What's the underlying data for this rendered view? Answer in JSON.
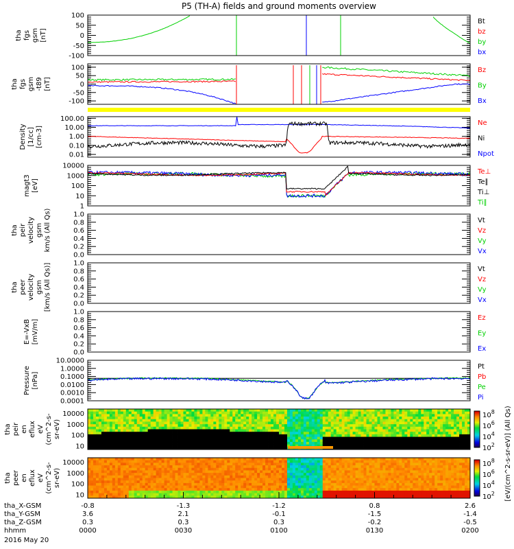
{
  "chart_data": {
    "type": "line",
    "title": "P5 (TH-A) fields and ground moments overview",
    "date": "2016 May 20",
    "x_axis": {
      "rows": [
        {
          "label": "tha_X-GSM",
          "values": [
            "-0.8",
            "-1.3",
            "-1.2",
            "0.8",
            "2.6"
          ]
        },
        {
          "label": "tha_Y-GSM",
          "values": [
            "3.6",
            "2.1",
            "-0.1",
            "-1.5",
            "-1.4"
          ]
        },
        {
          "label": "tha_Z-GSM",
          "values": [
            "0.3",
            "0.3",
            "0.3",
            "-0.2",
            "-0.5"
          ]
        },
        {
          "label": "hhmm",
          "values": [
            "0000",
            "0030",
            "0100",
            "0130",
            "0200"
          ]
        }
      ]
    },
    "panels": [
      {
        "id": "fgs",
        "ylabel": [
          "tha",
          "fgs",
          "gsm",
          "[nT]"
        ],
        "scale": "linear",
        "ylim": [
          -100,
          100
        ],
        "ticks": [
          "100",
          "50",
          "0",
          "-50",
          "-100"
        ],
        "tick_values": [
          100,
          50,
          0,
          -50,
          -100
        ],
        "legend": [
          {
            "name": "Bt",
            "color": "#000000"
          },
          {
            "name": "bz",
            "color": "#ff0000"
          },
          {
            "name": "by",
            "color": "#00d000"
          },
          {
            "name": "bx",
            "color": "#0000ff"
          }
        ]
      },
      {
        "id": "fgs_t89",
        "ylabel": [
          "tha",
          "fgs",
          "gsm",
          "-t89",
          "[nT]"
        ],
        "scale": "linear",
        "ylim": [
          -120,
          120
        ],
        "ticks": [
          "100",
          "50",
          "0",
          "-50",
          "-100"
        ],
        "tick_values": [
          100,
          50,
          0,
          -50,
          -100
        ],
        "legend": [
          {
            "name": "Bz",
            "color": "#ff0000"
          },
          {
            "name": "By",
            "color": "#00d000"
          },
          {
            "name": "Bx",
            "color": "#0000ff"
          }
        ]
      },
      {
        "id": "density",
        "ylabel": [
          "Density",
          "[1/cc]",
          "[cm-3]"
        ],
        "scale": "log",
        "ylim": [
          0.005,
          150
        ],
        "ticks": [
          "100.00",
          "10.00",
          "1.00",
          "0.10",
          "0.01"
        ],
        "tick_values": [
          100,
          10,
          1,
          0.1,
          0.01
        ],
        "legend": [
          {
            "name": "Ne",
            "color": "#ff0000"
          },
          {
            "name": "Ni",
            "color": "#000000"
          },
          {
            "name": "Npot",
            "color": "#0000ff"
          }
        ]
      },
      {
        "id": "temp",
        "ylabel": [
          "magt3",
          "[eV]"
        ],
        "scale": "log",
        "ylim": [
          1,
          10000
        ],
        "ticks": [
          "10000",
          "1000",
          "100",
          "10",
          "1"
        ],
        "tick_values": [
          10000,
          1000,
          100,
          10,
          1
        ],
        "legend": [
          {
            "name": "Te⊥",
            "color": "#ff0000"
          },
          {
            "name": "Te∥",
            "color": "#000000"
          },
          {
            "name": "Ti⊥",
            "color": "#000000"
          },
          {
            "name": "Ti∥",
            "color": "#00d000"
          }
        ]
      },
      {
        "id": "peir_vel",
        "ylabel": [
          "tha",
          "peir",
          "velocity",
          "gsm",
          "km/s (All Qs)"
        ],
        "scale": "linear",
        "ylim": [
          0,
          1
        ],
        "ticks": [
          "1.0",
          "0.8",
          "0.6",
          "0.4",
          "0.2",
          "0.0"
        ],
        "tick_values": [
          1,
          0.8,
          0.6,
          0.4,
          0.2,
          0
        ],
        "legend": [
          {
            "name": "Vt",
            "color": "#000000"
          },
          {
            "name": "Vz",
            "color": "#ff0000"
          },
          {
            "name": "Vy",
            "color": "#00d000"
          },
          {
            "name": "Vx",
            "color": "#0000ff"
          }
        ]
      },
      {
        "id": "peer_vel",
        "ylabel": [
          "tha",
          "peer",
          "velocity",
          "gsm",
          "[km/s (All Qs)]"
        ],
        "scale": "linear",
        "ylim": [
          0,
          1
        ],
        "ticks": [
          "1.0",
          "0.8",
          "0.6",
          "0.4",
          "0.2",
          "0.0"
        ],
        "tick_values": [
          1,
          0.8,
          0.6,
          0.4,
          0.2,
          0
        ],
        "legend": [
          {
            "name": "Vt",
            "color": "#000000"
          },
          {
            "name": "Vz",
            "color": "#ff0000"
          },
          {
            "name": "Vy",
            "color": "#00d000"
          },
          {
            "name": "Vx",
            "color": "#0000ff"
          }
        ]
      },
      {
        "id": "efield",
        "ylabel": [
          "E=-VxB",
          "[mV/m]"
        ],
        "scale": "linear",
        "ylim": [
          0,
          1
        ],
        "ticks": [
          "1.0",
          "0.8",
          "0.6",
          "0.4",
          "0.2",
          "0.0"
        ],
        "tick_values": [
          1,
          0.8,
          0.6,
          0.4,
          0.2,
          0
        ],
        "legend": [
          {
            "name": "Ez",
            "color": "#ff0000"
          },
          {
            "name": "Ey",
            "color": "#00d000"
          },
          {
            "name": "Ex",
            "color": "#0000ff"
          }
        ]
      },
      {
        "id": "pressure",
        "ylabel": [
          "Pressure",
          "[nPa]"
        ],
        "scale": "log",
        "ylim": [
          0.0001,
          10
        ],
        "ticks": [
          "10.0000",
          "1.0000",
          "0.1000",
          "0.0100",
          "0.0010",
          "0.0001"
        ],
        "tick_values": [
          10,
          1,
          0.1,
          0.01,
          0.001,
          0.0001
        ],
        "legend": [
          {
            "name": "Pt",
            "color": "#000000"
          },
          {
            "name": "Pb",
            "color": "#ff0000"
          },
          {
            "name": "Pe",
            "color": "#00d000"
          },
          {
            "name": "Pi",
            "color": "#0000ff"
          }
        ]
      },
      {
        "id": "peir_spec",
        "type": "heatmap",
        "ylabel": [
          "tha",
          "peir",
          "en",
          "eflux",
          "eV",
          "(cm^2-s-",
          "sr-eV)"
        ],
        "scale": "log",
        "ylim": [
          5,
          25000
        ],
        "ticks": [
          "10000",
          "1000",
          "100",
          "10"
        ],
        "tick_values": [
          10000,
          1000,
          100,
          10
        ],
        "colorbar": {
          "labels": [
            "10^8",
            "10^6",
            "10^4",
            "10^2"
          ]
        }
      },
      {
        "id": "peer_spec",
        "type": "heatmap",
        "ylabel": [
          "tha",
          "peer",
          "en",
          "eflux",
          "eV",
          "(cm^2-s-",
          "sr-eV)"
        ],
        "scale": "log",
        "ylim": [
          5,
          25000
        ],
        "ticks": [
          "10000",
          "1000",
          "100",
          "10"
        ],
        "tick_values": [
          10000,
          1000,
          100,
          10
        ],
        "colorbar": {
          "labels": [
            "10^8",
            "10^6",
            "10^4",
            "10^2"
          ]
        }
      }
    ],
    "colorbar_unit": "[eV/(cm^2-s-sr-eV)] (All Qs)",
    "approx_series": {
      "hhmm": [
        "0000",
        "0030",
        "0100",
        "0105",
        "0130",
        "0200"
      ],
      "Ni": [
        0.1,
        0.1,
        20,
        20,
        0.15,
        0.1
      ],
      "Ne": [
        1.0,
        0.3,
        0.02,
        0.015,
        1.0,
        0.6
      ],
      "Npot": [
        15,
        18,
        20,
        20,
        15,
        8
      ],
      "Ti_par": [
        1500,
        1500,
        10,
        10,
        1500,
        1500
      ],
      "Pi": [
        0.05,
        0.03,
        0.0003,
        0.0002,
        0.05,
        0.05
      ]
    }
  }
}
